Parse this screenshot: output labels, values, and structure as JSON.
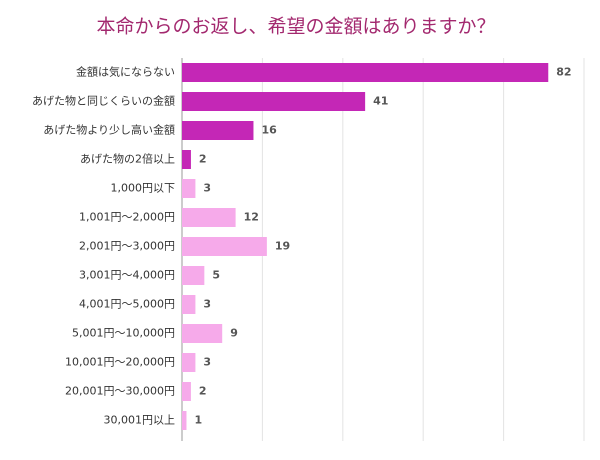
{
  "chart_data": {
    "type": "bar",
    "orientation": "horizontal",
    "title": "本命からのお返し、希望の金額はありますか？",
    "categories": [
      "金額は気にならない",
      "あげた物と同じくらいの金額",
      "あげた物より少し高い金額",
      "あげた物の2倍以上",
      "1,000円以下",
      "1,001円～2,000円",
      "2,001円～3,000円",
      "3,001円～4,000円",
      "4,001円～5,000円",
      "5,001円～10,000円",
      "10,001円～20,000円",
      "20,001円～30,000円",
      "30,001円以上"
    ],
    "values": [
      82,
      41,
      16,
      2,
      3,
      12,
      19,
      5,
      3,
      9,
      3,
      2,
      1
    ],
    "colors": [
      "#c427b6",
      "#c427b6",
      "#c427b6",
      "#c427b6",
      "#f6aaea",
      "#f6aaea",
      "#f6aaea",
      "#f6aaea",
      "#f6aaea",
      "#f6aaea",
      "#f6aaea",
      "#f6aaea",
      "#f6aaea"
    ],
    "xlim": [
      0,
      90
    ],
    "xticks": [
      0,
      18,
      36,
      54,
      72,
      90
    ],
    "grid": true
  }
}
